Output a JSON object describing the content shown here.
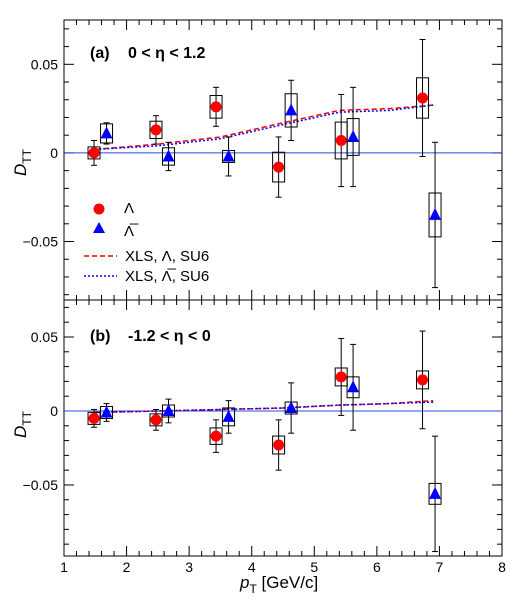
{
  "chart_data": {
    "type": "scatter",
    "shared_x_axis": {
      "label_main": "p",
      "label_sub": "T",
      "label_unit": " [GeV/c]",
      "xlim": [
        1,
        8
      ],
      "ticks": [
        "1",
        "2",
        "3",
        "4",
        "5",
        "6",
        "7",
        "8"
      ]
    },
    "colors": {
      "lambda": "#ff0000",
      "antilambda": "#0000ff",
      "zero_line": "#2a4bd7"
    },
    "legend": {
      "placement": "left-middle of panel (a)",
      "entries": [
        {
          "symbol": "red-circle",
          "label": "Λ"
        },
        {
          "symbol": "blue-triangle",
          "label": "Λ̅"
        },
        {
          "symbol": "red-dashed-line",
          "label": "XLS, Λ, SU6"
        },
        {
          "symbol": "blue-dashed-line",
          "label": "XLS, Λ̅, SU6"
        }
      ]
    },
    "panels": [
      {
        "id": "a",
        "label_prefix": "(a)",
        "label_text": "0 < η < 1.2",
        "ylabel_main": "D",
        "ylabel_sub": "TT",
        "ylim": [
          -0.083,
          0.075
        ],
        "yticks": [
          0.05,
          0,
          -0.05
        ],
        "ytick_labels": [
          "0.05",
          "0",
          "−0.05"
        ],
        "series": [
          {
            "name": "Λ",
            "marker": "circle",
            "color": "#ff0000",
            "points": [
              {
                "x": 1.48,
                "y": 0.0,
                "stat": 0.007,
                "sys": 0.0
              },
              {
                "x": 2.47,
                "y": 0.013,
                "stat": 0.008,
                "sys": 0.0015
              },
              {
                "x": 3.43,
                "y": 0.026,
                "stat": 0.011,
                "sys": 0.003
              },
              {
                "x": 4.43,
                "y": -0.008,
                "stat": 0.017,
                "sys": 0.005
              },
              {
                "x": 5.43,
                "y": 0.007,
                "stat": 0.026,
                "sys": 0.007
              },
              {
                "x": 6.73,
                "y": 0.031,
                "stat": 0.033,
                "sys": 0.008
              }
            ]
          },
          {
            "name": "Λ̅",
            "marker": "triangle",
            "color": "#0000ff",
            "points": [
              {
                "x": 1.68,
                "y": 0.011,
                "stat": 0.006,
                "sys": 0.002
              },
              {
                "x": 2.67,
                "y": -0.002,
                "stat": 0.008,
                "sys": 0.0015
              },
              {
                "x": 3.63,
                "y": -0.002,
                "stat": 0.011,
                "sys": 0.0
              },
              {
                "x": 4.63,
                "y": 0.024,
                "stat": 0.017,
                "sys": 0.006
              },
              {
                "x": 5.62,
                "y": 0.009,
                "stat": 0.028,
                "sys": 0.007
              },
              {
                "x": 6.93,
                "y": -0.035,
                "stat": 0.041,
                "sys": 0.009
              }
            ]
          }
        ],
        "model_curves": [
          {
            "name": "XLS, Λ, SU6",
            "color": "#ff0000",
            "x": [
              1.5,
              2.5,
              3.5,
              4.5,
              5.4,
              6.2,
              6.9
            ],
            "y": [
              0.002,
              0.005,
              0.009,
              0.017,
              0.024,
              0.025,
              0.027
            ]
          },
          {
            "name": "XLS, Λ̅, SU6",
            "color": "#0000ff",
            "x": [
              1.5,
              2.5,
              3.5,
              4.5,
              5.4,
              6.2,
              6.9
            ],
            "y": [
              0.002,
              0.004,
              0.008,
              0.016,
              0.023,
              0.024,
              0.027
            ]
          }
        ]
      },
      {
        "id": "b",
        "label_prefix": "(b)",
        "label_text": "-1.2 < η < 0",
        "ylabel_main": "D",
        "ylabel_sub": "TT",
        "ylim": [
          -0.098,
          0.075
        ],
        "yticks": [
          0.05,
          0,
          -0.05
        ],
        "ytick_labels": [
          "0.05",
          "0",
          "−0.05"
        ],
        "series": [
          {
            "name": "Λ",
            "marker": "circle",
            "color": "#ff0000",
            "points": [
              {
                "x": 1.48,
                "y": -0.005,
                "stat": 0.006,
                "sys": 0.0
              },
              {
                "x": 2.47,
                "y": -0.006,
                "stat": 0.007,
                "sys": 0.0
              },
              {
                "x": 3.43,
                "y": -0.017,
                "stat": 0.011,
                "sys": 0.0015
              },
              {
                "x": 4.43,
                "y": -0.023,
                "stat": 0.017,
                "sys": 0.002
              },
              {
                "x": 5.43,
                "y": 0.023,
                "stat": 0.026,
                "sys": 0.002
              },
              {
                "x": 6.73,
                "y": 0.021,
                "stat": 0.033,
                "sys": 0.002
              }
            ]
          },
          {
            "name": "Λ̅",
            "marker": "triangle",
            "color": "#0000ff",
            "points": [
              {
                "x": 1.68,
                "y": -0.001,
                "stat": 0.006,
                "sys": 0.0
              },
              {
                "x": 2.67,
                "y": 0.0,
                "stat": 0.008,
                "sys": 0.0
              },
              {
                "x": 3.63,
                "y": -0.004,
                "stat": 0.011,
                "sys": 0.002
              },
              {
                "x": 4.63,
                "y": 0.002,
                "stat": 0.017,
                "sys": 0.0
              },
              {
                "x": 5.62,
                "y": 0.016,
                "stat": 0.029,
                "sys": 0.003
              },
              {
                "x": 6.93,
                "y": -0.056,
                "stat": 0.039,
                "sys": 0.003
              }
            ]
          }
        ],
        "model_curves": [
          {
            "name": "XLS, Λ, SU6",
            "color": "#ff0000",
            "x": [
              1.5,
              2.5,
              3.5,
              4.5,
              5.4,
              6.2,
              6.9
            ],
            "y": [
              -0.001,
              0.0,
              0.001,
              0.002,
              0.004,
              0.005,
              0.007
            ]
          },
          {
            "name": "XLS, Λ̅, SU6",
            "color": "#0000ff",
            "x": [
              1.5,
              2.5,
              3.5,
              4.5,
              5.4,
              6.2,
              6.9
            ],
            "y": [
              -0.001,
              0.0,
              0.001,
              0.002,
              0.004,
              0.005,
              0.006
            ]
          }
        ]
      }
    ]
  }
}
